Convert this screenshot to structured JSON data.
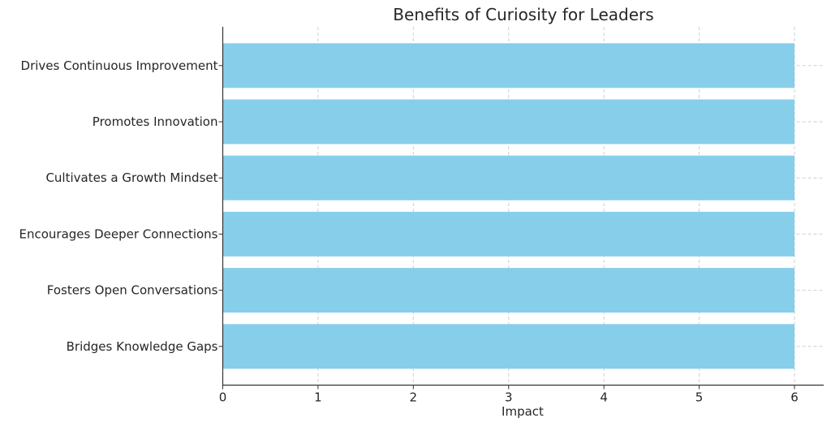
{
  "chart_data": {
    "type": "bar",
    "orientation": "horizontal",
    "title": "Benefits of Curiosity for Leaders",
    "xlabel": "Impact",
    "ylabel": "",
    "categories": [
      "Bridges Knowledge Gaps",
      "Fosters Open Conversations",
      "Encourages Deeper Connections",
      "Cultivates a Growth Mindset",
      "Promotes Innovation",
      "Drives Continuous Improvement"
    ],
    "values": [
      6,
      6,
      6,
      6,
      6,
      6
    ],
    "xlim": [
      0,
      6.3
    ],
    "xticks": [
      "0",
      "1",
      "2",
      "3",
      "4",
      "5",
      "6"
    ],
    "grid": true,
    "bar_color": "#87ceeb"
  }
}
